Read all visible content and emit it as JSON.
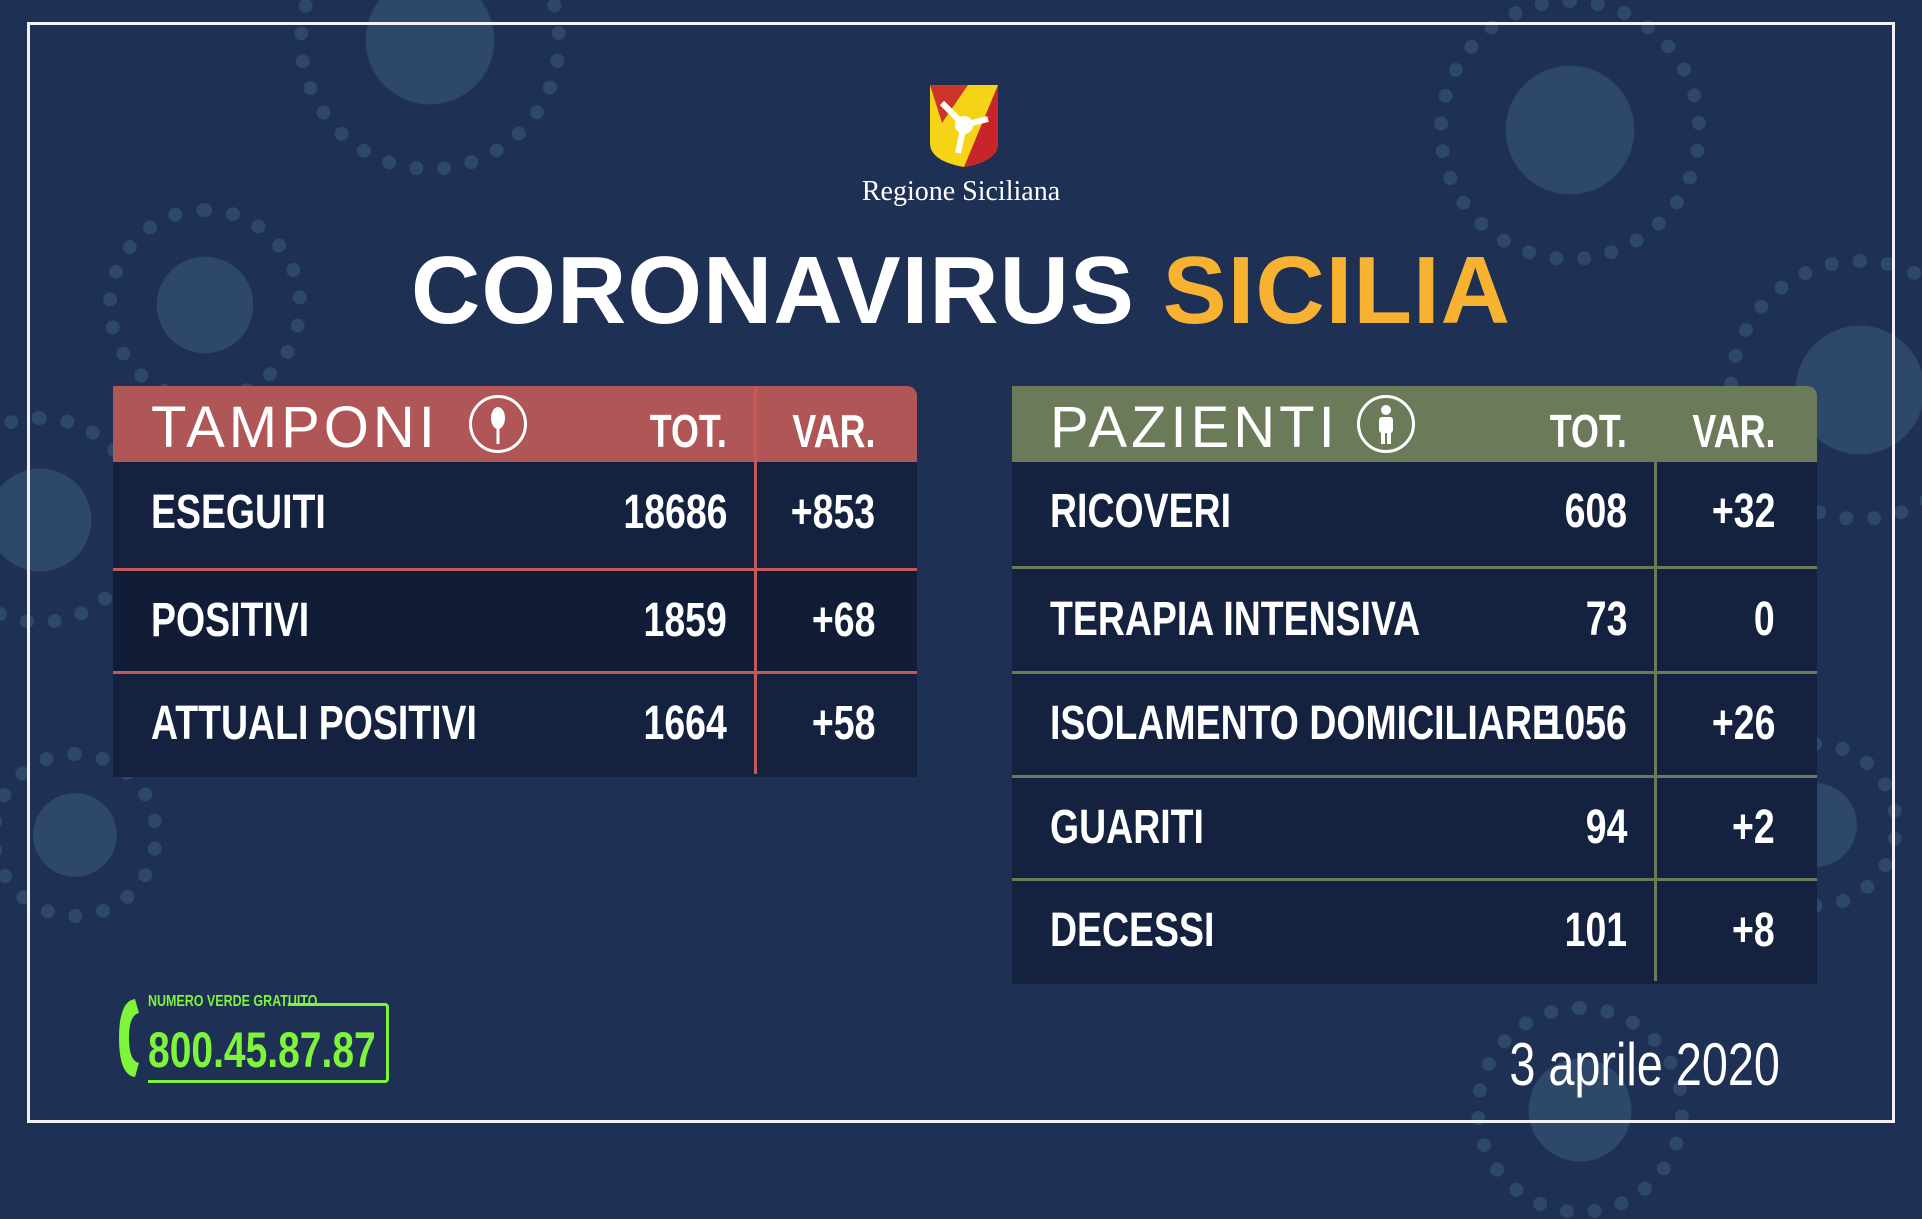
{
  "header": {
    "region": "Regione Siciliana",
    "title_white": "CORONAVIRUS",
    "title_yellow": "SICILIA"
  },
  "colors": {
    "background": "#1e3054",
    "tamponi_header": "#b05656",
    "pazienti_header": "#6b7a58",
    "row": "#14223f",
    "title_accent": "#f7b232",
    "hotline": "#7ef43a"
  },
  "tamponi": {
    "title": "TAMPONI",
    "icon": "swab-icon",
    "col_tot": "TOT.",
    "col_var": "VAR.",
    "rows": [
      {
        "label": "ESEGUITI",
        "tot": "18686",
        "var": "+853"
      },
      {
        "label": "POSITIVI",
        "tot": "1859",
        "var": "+68"
      },
      {
        "label": "ATTUALI  POSITIVI",
        "tot": "1664",
        "var": "+58"
      }
    ]
  },
  "pazienti": {
    "title": "PAZIENTI",
    "icon": "person-icon",
    "col_tot": "TOT.",
    "col_var": "VAR.",
    "rows": [
      {
        "label": "RICOVERI",
        "tot": "608",
        "var": "+32"
      },
      {
        "label": "TERAPIA INTENSIVA",
        "tot": "73",
        "var": "0"
      },
      {
        "label": "ISOLAMENTO DOMICILIARE",
        "tot": "1056",
        "var": "+26"
      },
      {
        "label": "GUARITI",
        "tot": "94",
        "var": "+2"
      },
      {
        "label": "DECESSI",
        "tot": "101",
        "var": "+8"
      }
    ]
  },
  "hotline": {
    "caption": "NUMERO VERDE GRATUITO",
    "number": "800.45.87.87",
    "icon": "phone-icon"
  },
  "date": "3 aprile 2020"
}
